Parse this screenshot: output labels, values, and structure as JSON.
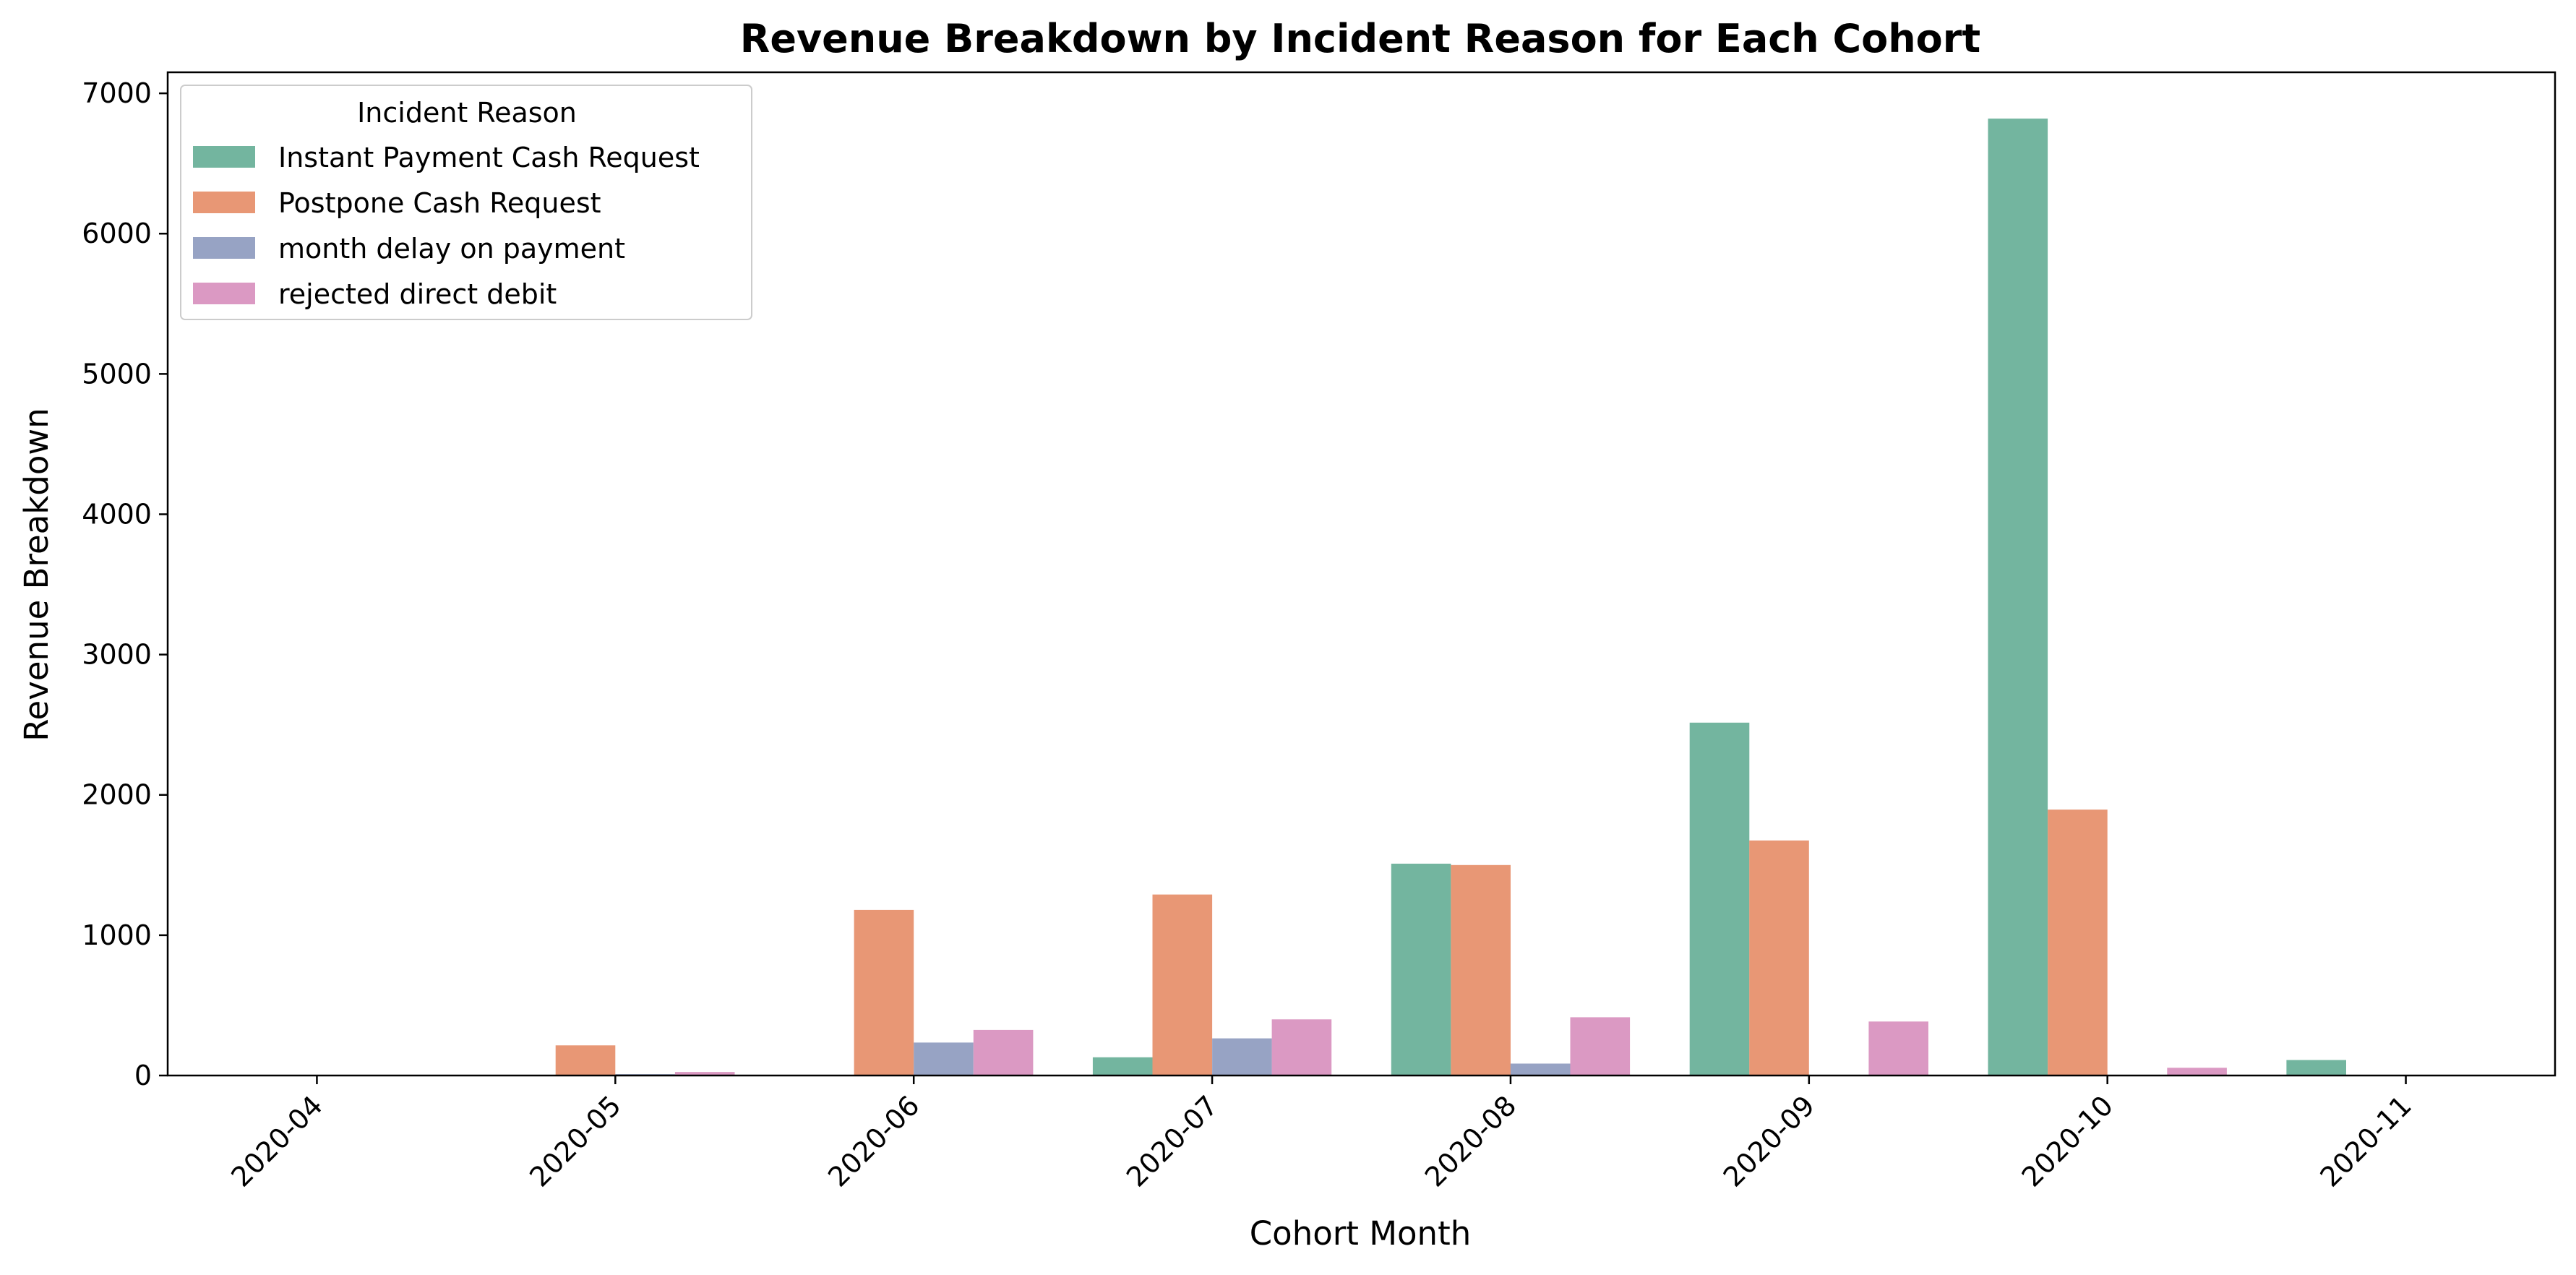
{
  "chart_data": {
    "type": "bar",
    "title": "Revenue Breakdown by Incident Reason for Each Cohort",
    "xlabel": "Cohort Month",
    "ylabel": "Revenue Breakdown",
    "categories": [
      "2020-04",
      "2020-05",
      "2020-06",
      "2020-07",
      "2020-08",
      "2020-09",
      "2020-10",
      "2020-11"
    ],
    "ylim": [
      0,
      7150
    ],
    "yticks": [
      0,
      1000,
      2000,
      3000,
      4000,
      5000,
      6000,
      7000
    ],
    "legend": {
      "title": "Incident Reason",
      "position": "top-left"
    },
    "grid": false,
    "series": [
      {
        "name": "Instant Payment Cash Request",
        "color": "#73b59f",
        "values": [
          0,
          0,
          0,
          130,
          1510,
          2515,
          6820,
          110
        ]
      },
      {
        "name": "Postpone Cash Request",
        "color": "#e89775",
        "values": [
          0,
          215,
          1180,
          1290,
          1500,
          1675,
          1895,
          0
        ]
      },
      {
        "name": "month delay on payment",
        "color": "#97a3c4",
        "values": [
          0,
          10,
          235,
          265,
          85,
          0,
          0,
          0
        ]
      },
      {
        "name": "rejected direct debit",
        "color": "#db99c3",
        "values": [
          0,
          25,
          325,
          400,
          415,
          385,
          55,
          0
        ]
      }
    ]
  }
}
